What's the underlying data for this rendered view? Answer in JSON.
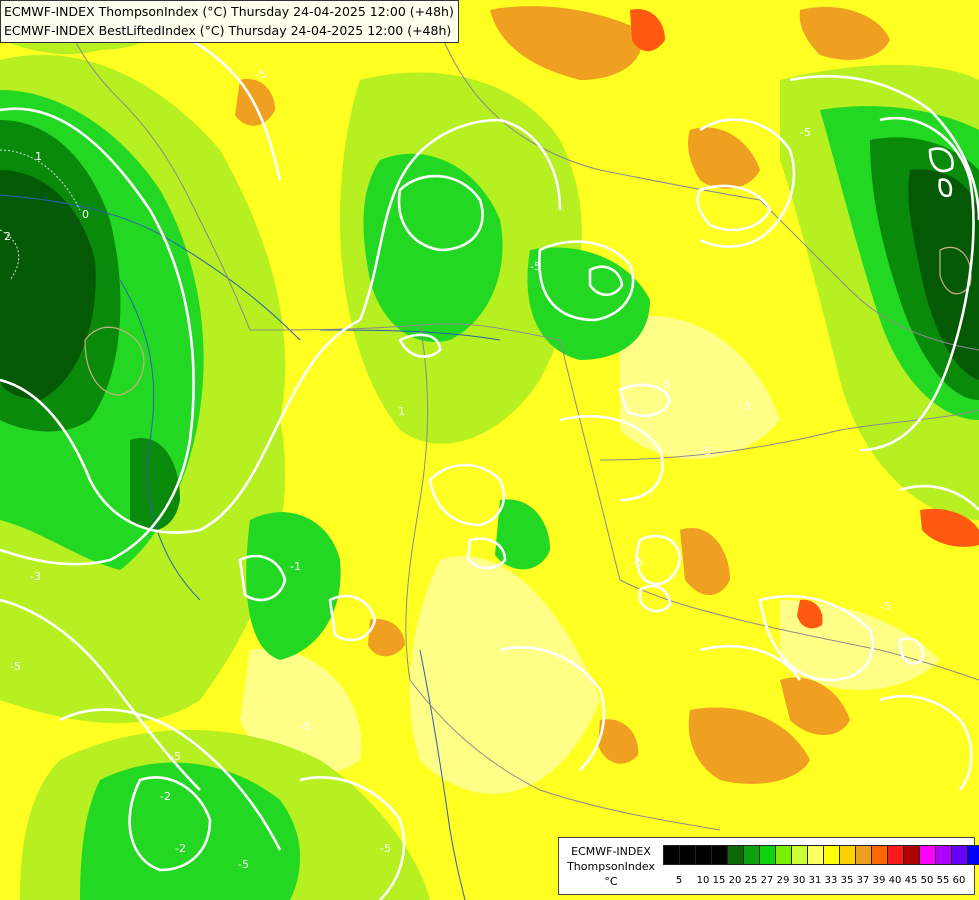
{
  "header": {
    "line1": "ECMWF-INDEX ThompsonIndex (°C) Thursday 24-04-2025 12:00 (+48h)",
    "line2": "ECMWF-INDEX BestLiftedIndex (°C) Thursday 24-04-2025 12:00 (+48h)"
  },
  "legend": {
    "model": "ECMWF-INDEX",
    "parameter": "ThompsonIndex",
    "unit": "°C",
    "ticks": [
      "5",
      "10",
      "15",
      "20",
      "25",
      "27",
      "29",
      "30",
      "31",
      "33",
      "35",
      "37",
      "39",
      "40",
      "45",
      "50",
      "55",
      "60"
    ],
    "colors": [
      "#000000",
      "#000000",
      "#000000",
      "#000000",
      "#0a6a0a",
      "#0ea30e",
      "#10d010",
      "#7aee00",
      "#ccff33",
      "#ffff66",
      "#ffff00",
      "#ffd000",
      "#f0a020",
      "#ff6600",
      "#ff1a1a",
      "#b00000",
      "#ff00ff",
      "#b000ff",
      "#6a00ff",
      "#0000ff"
    ]
  },
  "contour_labels": [
    "1",
    "0",
    "2",
    "1",
    "-5",
    "-5",
    "-5",
    "-5",
    "-5",
    "-5",
    "-5",
    "-5",
    "-5",
    "-5",
    "-5",
    "-5",
    "-3",
    "-3",
    "-2",
    "-2",
    "-1"
  ],
  "colors": {
    "background": "#ffff33",
    "contour": "#ffffff",
    "border": "#9a9a9a",
    "river": "#2e5fae"
  }
}
